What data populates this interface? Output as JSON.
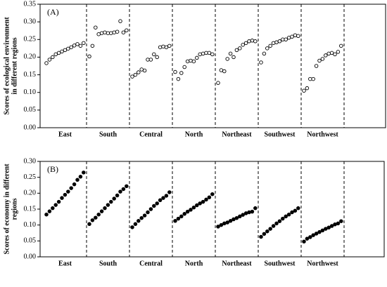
{
  "chart_data": [
    {
      "type": "dot",
      "title": "(A)",
      "marker": "open",
      "color": "#000000",
      "y_label": [
        "Scores of ecological environment",
        "in different regions"
      ],
      "ylim": [
        0,
        0.35
      ],
      "yticks": [
        {
          "value": 0,
          "label": "0.00"
        },
        {
          "value": 0.05,
          "label": "0.05"
        },
        {
          "value": 0.1,
          "label": "0.10"
        },
        {
          "value": 0.15,
          "label": "0.15"
        },
        {
          "value": 0.2,
          "label": "0.20"
        },
        {
          "value": 0.25,
          "label": "0.25"
        },
        {
          "value": 0.3,
          "label": "0.30"
        },
        {
          "value": 0.35,
          "label": "0.35"
        }
      ],
      "regions": [
        {
          "name": "East",
          "values": [
            0.183,
            0.193,
            0.2,
            0.208,
            0.212,
            0.216,
            0.22,
            0.224,
            0.228,
            0.233,
            0.237,
            0.232,
            0.24
          ]
        },
        {
          "name": "South",
          "values": [
            0.202,
            0.232,
            0.284,
            0.265,
            0.268,
            0.27,
            0.268,
            0.268,
            0.27,
            0.272,
            0.302,
            0.27,
            0.276
          ]
        },
        {
          "name": "Central",
          "values": [
            0.145,
            0.15,
            0.157,
            0.165,
            0.162,
            0.193,
            0.193,
            0.208,
            0.2,
            0.228,
            0.23,
            0.228,
            0.232
          ]
        },
        {
          "name": "North",
          "values": [
            0.158,
            0.138,
            0.155,
            0.172,
            0.188,
            0.19,
            0.188,
            0.198,
            0.208,
            0.21,
            0.212,
            0.212,
            0.208
          ]
        },
        {
          "name": "Northeast",
          "values": [
            0.127,
            0.163,
            0.16,
            0.195,
            0.21,
            0.2,
            0.22,
            0.225,
            0.235,
            0.24,
            0.245,
            0.247,
            0.245
          ]
        },
        {
          "name": "Southwest",
          "values": [
            0.185,
            0.21,
            0.225,
            0.232,
            0.24,
            0.242,
            0.245,
            0.25,
            0.25,
            0.255,
            0.258,
            0.262,
            0.26
          ]
        },
        {
          "name": "Northwest",
          "values": [
            0.105,
            0.112,
            0.138,
            0.138,
            0.175,
            0.19,
            0.195,
            0.205,
            0.21,
            0.212,
            0.208,
            0.215,
            0.232
          ]
        }
      ]
    },
    {
      "type": "dot",
      "title": "(B)",
      "marker": "filled",
      "color": "#000000",
      "y_label": [
        "Scores of economy in different",
        "regions"
      ],
      "ylim": [
        0,
        0.3
      ],
      "yticks": [
        {
          "value": 0,
          "label": "0.00"
        },
        {
          "value": 0.05,
          "label": "0.05"
        },
        {
          "value": 0.1,
          "label": "0.10"
        },
        {
          "value": 0.15,
          "label": "0.15"
        },
        {
          "value": 0.2,
          "label": "0.20"
        },
        {
          "value": 0.25,
          "label": "0.25"
        },
        {
          "value": 0.3,
          "label": "0.30"
        }
      ],
      "regions": [
        {
          "name": "East",
          "values": [
            0.133,
            0.143,
            0.153,
            0.163,
            0.173,
            0.185,
            0.195,
            0.205,
            0.216,
            0.228,
            0.242,
            0.252,
            0.265
          ]
        },
        {
          "name": "South",
          "values": [
            0.103,
            0.115,
            0.123,
            0.133,
            0.143,
            0.153,
            0.163,
            0.173,
            0.183,
            0.193,
            0.205,
            0.213,
            0.222
          ]
        },
        {
          "name": "Central",
          "values": [
            0.093,
            0.103,
            0.113,
            0.122,
            0.13,
            0.14,
            0.15,
            0.16,
            0.168,
            0.178,
            0.185,
            0.192,
            0.203
          ]
        },
        {
          "name": "North",
          "values": [
            0.113,
            0.12,
            0.127,
            0.135,
            0.142,
            0.148,
            0.155,
            0.162,
            0.168,
            0.173,
            0.18,
            0.187,
            0.197
          ]
        },
        {
          "name": "Northeast",
          "values": [
            0.095,
            0.1,
            0.105,
            0.108,
            0.113,
            0.118,
            0.122,
            0.127,
            0.132,
            0.137,
            0.14,
            0.142,
            0.153
          ]
        },
        {
          "name": "Southwest",
          "values": [
            0.063,
            0.072,
            0.08,
            0.088,
            0.097,
            0.105,
            0.112,
            0.12,
            0.127,
            0.133,
            0.14,
            0.145,
            0.153
          ]
        },
        {
          "name": "Northwest",
          "values": [
            0.048,
            0.057,
            0.062,
            0.068,
            0.073,
            0.078,
            0.083,
            0.088,
            0.092,
            0.097,
            0.102,
            0.105,
            0.112
          ]
        }
      ]
    }
  ]
}
